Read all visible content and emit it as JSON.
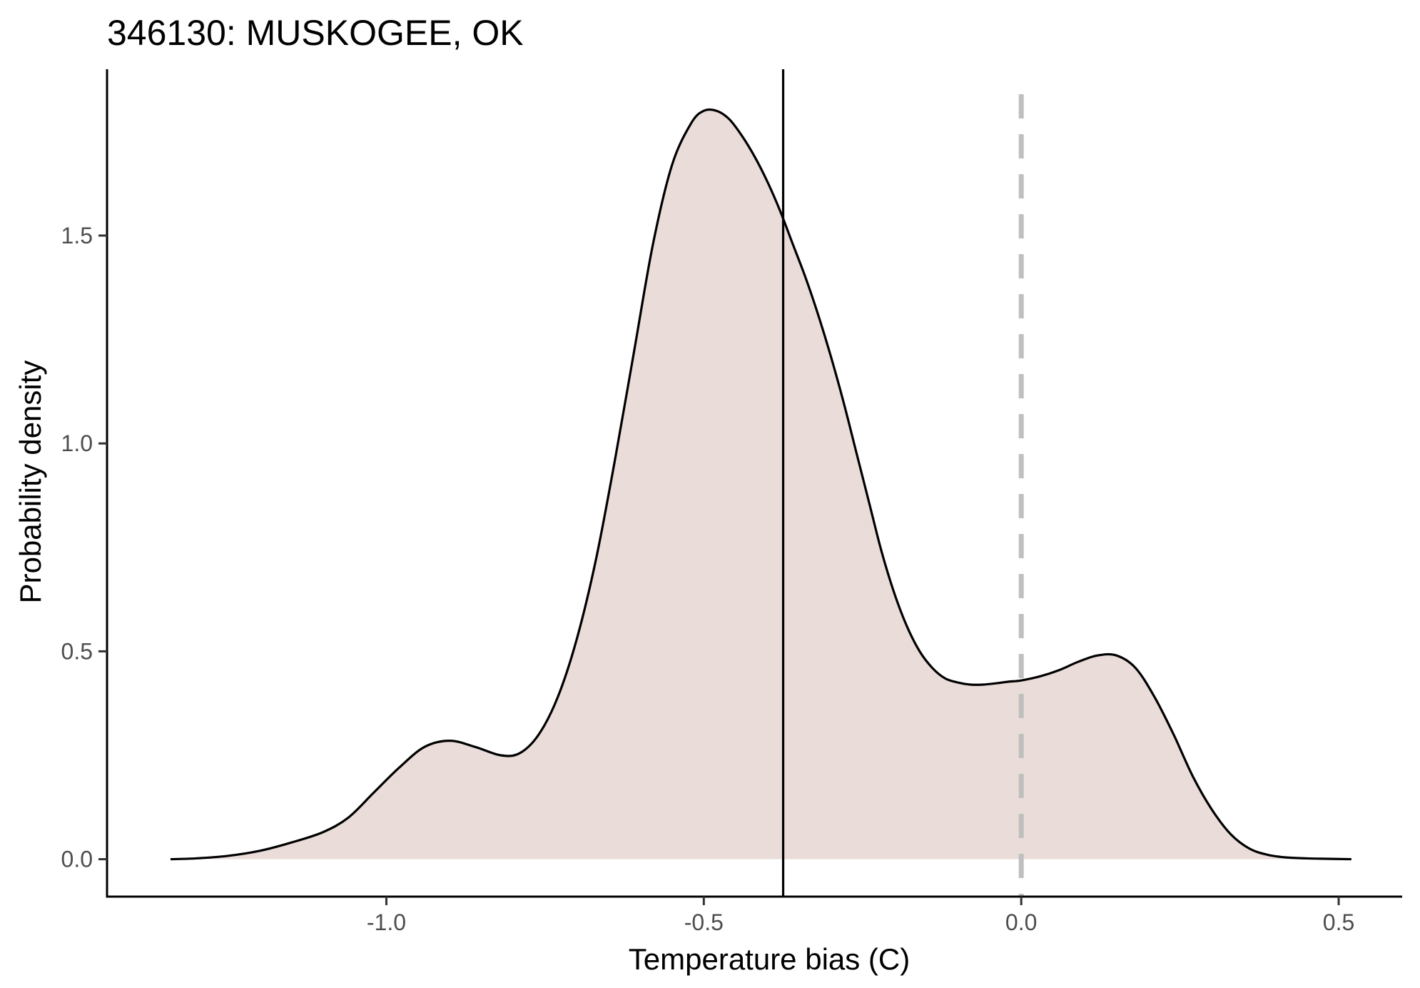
{
  "chart_data": {
    "type": "area",
    "title": "346130: MUSKOGEE, OK",
    "xlabel": "Temperature bias (C)",
    "ylabel": "Probability density",
    "xlim": [
      -1.44,
      0.6
    ],
    "ylim": [
      -0.09,
      1.9
    ],
    "x_ticks": [
      -1.0,
      -0.5,
      0.0,
      0.5
    ],
    "x_tick_labels": [
      "-1.0",
      "-0.5",
      "0.0",
      "0.5"
    ],
    "y_ticks": [
      0.0,
      0.5,
      1.0,
      1.5
    ],
    "y_tick_labels": [
      "0.0",
      "0.5",
      "1.0",
      "1.5"
    ],
    "grid": false,
    "legend": "none",
    "colors": {
      "fill": "#eaddd9",
      "line": "#000000",
      "zero_line": "#bfbfbf",
      "mean_line": "#000000"
    },
    "mean_line_x": -0.375,
    "zero_line_x": 0.0,
    "series": [
      {
        "x": [
          -1.34,
          -1.3,
          -1.25,
          -1.2,
          -1.15,
          -1.1,
          -1.06,
          -1.02,
          -0.98,
          -0.94,
          -0.9,
          -0.86,
          -0.82,
          -0.79,
          -0.76,
          -0.73,
          -0.7,
          -0.67,
          -0.64,
          -0.61,
          -0.58,
          -0.55,
          -0.52,
          -0.5,
          -0.48,
          -0.46,
          -0.44,
          -0.42,
          -0.4,
          -0.38,
          -0.36,
          -0.34,
          -0.32,
          -0.3,
          -0.28,
          -0.26,
          -0.24,
          -0.22,
          -0.2,
          -0.18,
          -0.16,
          -0.14,
          -0.12,
          -0.1,
          -0.08,
          -0.06,
          -0.04,
          -0.02,
          0.0,
          0.03,
          0.06,
          0.09,
          0.12,
          0.15,
          0.18,
          0.21,
          0.24,
          0.27,
          0.3,
          0.33,
          0.36,
          0.39,
          0.42,
          0.45,
          0.48,
          0.52
        ],
        "y": [
          0.0,
          0.002,
          0.008,
          0.02,
          0.04,
          0.065,
          0.1,
          0.16,
          0.22,
          0.27,
          0.285,
          0.27,
          0.25,
          0.255,
          0.3,
          0.39,
          0.53,
          0.72,
          0.96,
          1.22,
          1.48,
          1.67,
          1.77,
          1.8,
          1.8,
          1.78,
          1.74,
          1.69,
          1.63,
          1.56,
          1.48,
          1.4,
          1.31,
          1.21,
          1.1,
          0.98,
          0.86,
          0.74,
          0.64,
          0.56,
          0.5,
          0.46,
          0.435,
          0.425,
          0.42,
          0.42,
          0.423,
          0.427,
          0.43,
          0.44,
          0.455,
          0.475,
          0.49,
          0.49,
          0.46,
          0.39,
          0.3,
          0.2,
          0.12,
          0.06,
          0.025,
          0.01,
          0.004,
          0.002,
          0.001,
          0.0
        ]
      }
    ]
  }
}
